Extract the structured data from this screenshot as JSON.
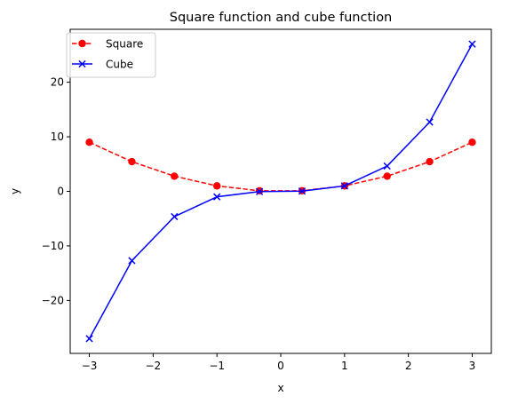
{
  "chart_data": {
    "type": "line",
    "title": "Square function and cube function",
    "xlabel": "x",
    "ylabel": "y",
    "xlim": [
      -3.3,
      3.3
    ],
    "ylim": [
      -29.7,
      29.7
    ],
    "xticks": [
      -3,
      -2,
      -1,
      0,
      1,
      2,
      3
    ],
    "xtick_labels": [
      "−3",
      "−2",
      "−1",
      "0",
      "1",
      "2",
      "3"
    ],
    "yticks": [
      -20,
      -10,
      0,
      10,
      20
    ],
    "ytick_labels": [
      "−20",
      "−10",
      "0",
      "10",
      "20"
    ],
    "grid": false,
    "legend_position": "top-left",
    "x": [
      -3,
      -2.333,
      -1.667,
      -1,
      -0.333,
      0.333,
      1,
      1.667,
      2.333,
      3
    ],
    "series": [
      {
        "name": "Square",
        "color": "#ff0000",
        "line_style": "dashed",
        "marker": "circle",
        "values": [
          9,
          5.44,
          2.78,
          1,
          0.11,
          0.11,
          1,
          2.78,
          5.44,
          9
        ]
      },
      {
        "name": "Cube",
        "color": "#0000ff",
        "line_style": "solid",
        "marker": "x",
        "values": [
          -27,
          -12.7,
          -4.63,
          -1,
          -0.04,
          0.04,
          1,
          4.63,
          12.7,
          27
        ]
      }
    ]
  }
}
